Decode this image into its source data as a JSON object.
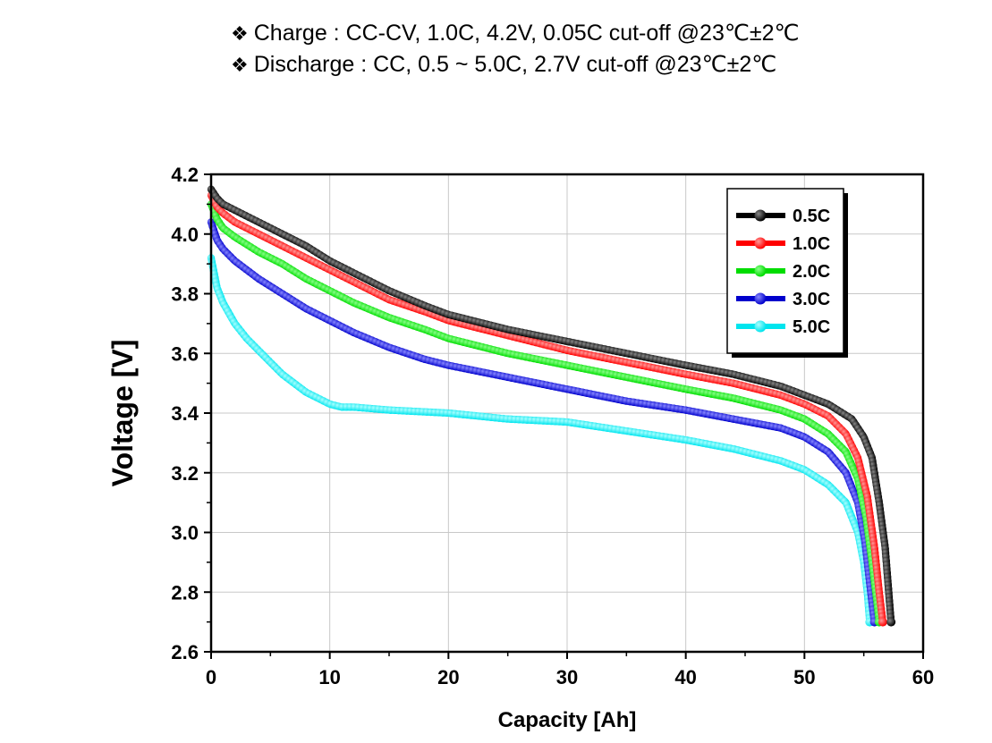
{
  "conditions": {
    "bullet": "❖",
    "charge": "Charge : CC-CV, 1.0C, 4.2V, 0.05C cut-off @23℃±2℃",
    "discharge": "Discharge : CC, 0.5 ~ 5.0C, 2.7V cut-off @23℃±2℃"
  },
  "chart_data": {
    "type": "line",
    "xlabel": "Capacity [Ah]",
    "ylabel": "Voltage [V]",
    "xlim": [
      0,
      60
    ],
    "ylim": [
      2.6,
      4.2
    ],
    "xticks": [
      0,
      10,
      20,
      30,
      40,
      50,
      60
    ],
    "yticks": [
      2.6,
      2.8,
      3.0,
      3.2,
      3.4,
      3.6,
      3.8,
      4.0,
      4.2
    ],
    "grid": true,
    "legend_position": "top-right",
    "series": [
      {
        "name": "0.5C",
        "color": "#000000",
        "highlight": "#888888",
        "points": [
          [
            0,
            4.15
          ],
          [
            0.5,
            4.12
          ],
          [
            1,
            4.1
          ],
          [
            2,
            4.08
          ],
          [
            4,
            4.04
          ],
          [
            6,
            4.0
          ],
          [
            8,
            3.96
          ],
          [
            10,
            3.91
          ],
          [
            12,
            3.87
          ],
          [
            15,
            3.81
          ],
          [
            18,
            3.76
          ],
          [
            20,
            3.73
          ],
          [
            25,
            3.68
          ],
          [
            30,
            3.64
          ],
          [
            35,
            3.6
          ],
          [
            40,
            3.56
          ],
          [
            44,
            3.53
          ],
          [
            48,
            3.49
          ],
          [
            50,
            3.46
          ],
          [
            52,
            3.43
          ],
          [
            54,
            3.38
          ],
          [
            55,
            3.32
          ],
          [
            55.7,
            3.25
          ],
          [
            56.3,
            3.1
          ],
          [
            56.8,
            2.95
          ],
          [
            57.1,
            2.8
          ],
          [
            57.3,
            2.7
          ]
        ]
      },
      {
        "name": "1.0C",
        "color": "#ff0000",
        "highlight": "#ff9999",
        "points": [
          [
            0,
            4.13
          ],
          [
            0.5,
            4.09
          ],
          [
            1,
            4.07
          ],
          [
            2,
            4.04
          ],
          [
            4,
            4.0
          ],
          [
            6,
            3.96
          ],
          [
            8,
            3.92
          ],
          [
            10,
            3.88
          ],
          [
            12,
            3.84
          ],
          [
            15,
            3.78
          ],
          [
            18,
            3.74
          ],
          [
            20,
            3.71
          ],
          [
            25,
            3.66
          ],
          [
            30,
            3.61
          ],
          [
            35,
            3.57
          ],
          [
            40,
            3.53
          ],
          [
            44,
            3.5
          ],
          [
            48,
            3.46
          ],
          [
            50,
            3.43
          ],
          [
            52,
            3.39
          ],
          [
            53.5,
            3.33
          ],
          [
            54.5,
            3.25
          ],
          [
            55.3,
            3.12
          ],
          [
            55.9,
            2.95
          ],
          [
            56.3,
            2.8
          ],
          [
            56.6,
            2.7
          ]
        ]
      },
      {
        "name": "2.0C",
        "color": "#00dd00",
        "highlight": "#88ff88",
        "points": [
          [
            0,
            4.1
          ],
          [
            0.5,
            4.05
          ],
          [
            1,
            4.02
          ],
          [
            2,
            3.99
          ],
          [
            4,
            3.94
          ],
          [
            6,
            3.9
          ],
          [
            8,
            3.85
          ],
          [
            10,
            3.81
          ],
          [
            12,
            3.77
          ],
          [
            15,
            3.72
          ],
          [
            18,
            3.68
          ],
          [
            20,
            3.65
          ],
          [
            25,
            3.6
          ],
          [
            30,
            3.56
          ],
          [
            35,
            3.52
          ],
          [
            40,
            3.48
          ],
          [
            44,
            3.45
          ],
          [
            48,
            3.41
          ],
          [
            50,
            3.38
          ],
          [
            52,
            3.33
          ],
          [
            53.5,
            3.27
          ],
          [
            54.5,
            3.18
          ],
          [
            55.2,
            3.05
          ],
          [
            55.7,
            2.9
          ],
          [
            56.1,
            2.77
          ],
          [
            56.3,
            2.7
          ]
        ]
      },
      {
        "name": "3.0C",
        "color": "#0000cc",
        "highlight": "#8888ff",
        "points": [
          [
            0,
            4.04
          ],
          [
            0.5,
            3.98
          ],
          [
            1,
            3.95
          ],
          [
            2,
            3.91
          ],
          [
            4,
            3.85
          ],
          [
            6,
            3.8
          ],
          [
            8,
            3.75
          ],
          [
            10,
            3.71
          ],
          [
            12,
            3.67
          ],
          [
            15,
            3.62
          ],
          [
            18,
            3.58
          ],
          [
            20,
            3.56
          ],
          [
            25,
            3.52
          ],
          [
            30,
            3.48
          ],
          [
            35,
            3.44
          ],
          [
            40,
            3.41
          ],
          [
            44,
            3.38
          ],
          [
            48,
            3.35
          ],
          [
            50,
            3.32
          ],
          [
            52,
            3.27
          ],
          [
            53.5,
            3.2
          ],
          [
            54.5,
            3.1
          ],
          [
            55.1,
            2.97
          ],
          [
            55.5,
            2.83
          ],
          [
            55.8,
            2.73
          ],
          [
            55.9,
            2.7
          ]
        ]
      },
      {
        "name": "5.0C",
        "color": "#00e5ee",
        "highlight": "#aaffff",
        "points": [
          [
            0,
            3.92
          ],
          [
            0.5,
            3.82
          ],
          [
            1,
            3.77
          ],
          [
            2,
            3.7
          ],
          [
            3,
            3.65
          ],
          [
            4,
            3.61
          ],
          [
            5,
            3.57
          ],
          [
            6,
            3.53
          ],
          [
            7,
            3.5
          ],
          [
            8,
            3.47
          ],
          [
            9,
            3.45
          ],
          [
            10,
            3.43
          ],
          [
            11,
            3.42
          ],
          [
            12,
            3.42
          ],
          [
            15,
            3.41
          ],
          [
            20,
            3.4
          ],
          [
            25,
            3.38
          ],
          [
            30,
            3.37
          ],
          [
            35,
            3.34
          ],
          [
            40,
            3.31
          ],
          [
            44,
            3.28
          ],
          [
            48,
            3.24
          ],
          [
            50,
            3.21
          ],
          [
            52,
            3.16
          ],
          [
            53.5,
            3.1
          ],
          [
            54.5,
            3.0
          ],
          [
            55,
            2.9
          ],
          [
            55.3,
            2.8
          ],
          [
            55.5,
            2.7
          ]
        ]
      }
    ]
  }
}
